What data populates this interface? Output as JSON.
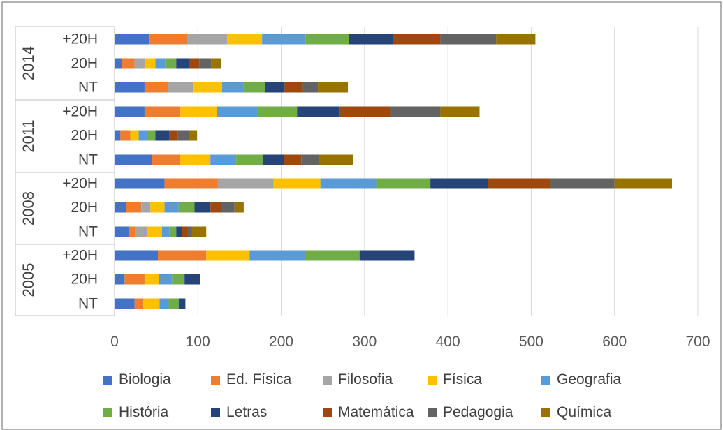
{
  "chart_data": {
    "type": "bar",
    "orientation": "horizontal",
    "stacked": true,
    "title": "",
    "groups": [
      {
        "label": "2014",
        "categories": [
          "+20H",
          "20H",
          "NT"
        ]
      },
      {
        "label": "2011",
        "categories": [
          "+20H",
          "20H",
          "NT"
        ]
      },
      {
        "label": "2008",
        "categories": [
          "+20H",
          "20H",
          "NT"
        ]
      },
      {
        "label": "2005",
        "categories": [
          "+20H",
          "20H",
          "NT"
        ]
      }
    ],
    "xlim": [
      0,
      700
    ],
    "xticks": [
      0,
      100,
      200,
      300,
      400,
      500,
      600,
      700
    ],
    "grid": true,
    "legend_position": "bottom",
    "series": [
      {
        "name": "Biologia",
        "color": "#4472C4",
        "values": [
          42,
          9,
          36,
          36,
          7,
          45,
          60,
          14,
          17,
          52,
          12,
          24
        ]
      },
      {
        "name": "Ed. Física",
        "color": "#ED7D31",
        "values": [
          45,
          15,
          28,
          43,
          12,
          33,
          64,
          18,
          8,
          58,
          24,
          10
        ]
      },
      {
        "name": "Filosofia",
        "color": "#A5A5A5",
        "values": [
          48,
          13,
          31,
          0,
          0,
          0,
          67,
          11,
          14,
          0,
          0,
          0
        ]
      },
      {
        "name": "Física",
        "color": "#FFC000",
        "values": [
          42,
          12,
          34,
          44,
          10,
          37,
          56,
          17,
          18,
          52,
          17,
          20
        ]
      },
      {
        "name": "Geografia",
        "color": "#5B9BD5",
        "values": [
          52,
          12,
          26,
          49,
          10,
          31,
          67,
          17,
          9,
          66,
          16,
          11
        ]
      },
      {
        "name": "História",
        "color": "#70AD47",
        "values": [
          52,
          13,
          26,
          47,
          10,
          32,
          65,
          19,
          8,
          66,
          15,
          12
        ]
      },
      {
        "name": "Letras",
        "color": "#264478",
        "values": [
          53,
          15,
          23,
          51,
          17,
          25,
          69,
          19,
          7,
          66,
          19,
          8
        ]
      },
      {
        "name": "Matemática",
        "color": "#9E480E",
        "values": [
          57,
          13,
          22,
          61,
          10,
          21,
          75,
          13,
          7,
          0,
          0,
          0
        ]
      },
      {
        "name": "Pedagogia",
        "color": "#636363",
        "values": [
          67,
          14,
          18,
          60,
          13,
          22,
          77,
          16,
          5,
          0,
          0,
          0
        ]
      },
      {
        "name": "Química",
        "color": "#997300",
        "values": [
          47,
          12,
          36,
          47,
          10,
          40,
          69,
          11,
          17,
          0,
          0,
          0
        ]
      }
    ]
  }
}
